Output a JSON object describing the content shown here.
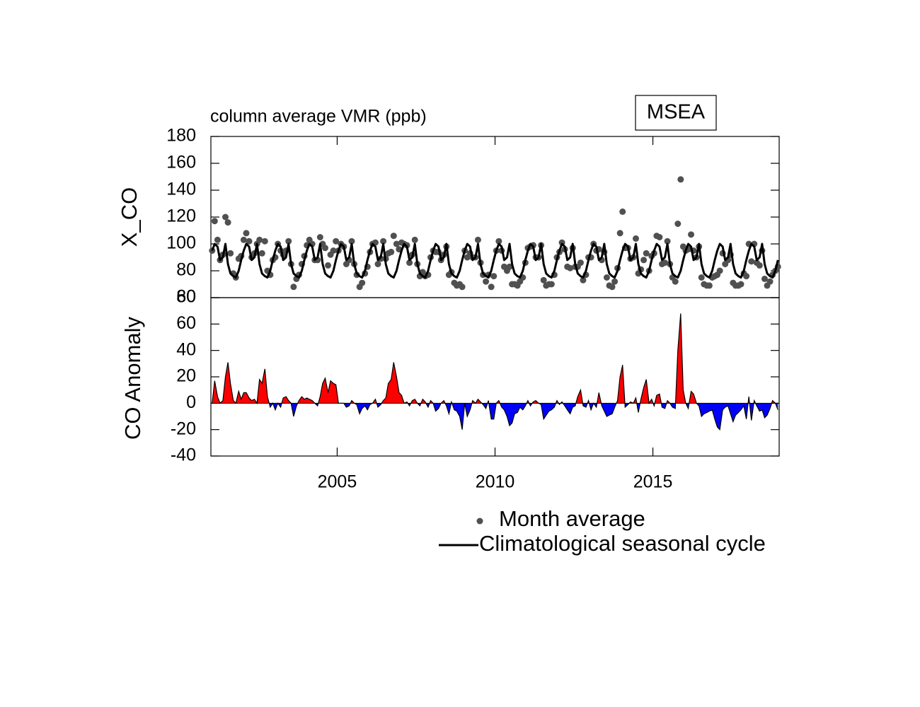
{
  "chart_data": [
    {
      "type": "scatter",
      "title": "column average VMR (ppb)",
      "annotation": "MSEA",
      "ylabel": "X_CO",
      "xlim": [
        2001,
        2019
      ],
      "ylim": [
        60,
        180
      ],
      "yticks": [
        60,
        80,
        100,
        120,
        140,
        160,
        180
      ],
      "x": [
        2001.04,
        2001.12,
        2001.21,
        2001.29,
        2001.38,
        2001.46,
        2001.54,
        2001.62,
        2001.71,
        2001.79,
        2001.88,
        2001.96,
        2002.04,
        2002.12,
        2002.21,
        2002.29,
        2002.38,
        2002.46,
        2002.54,
        2002.62,
        2002.71,
        2002.79,
        2002.88,
        2002.96,
        2003.04,
        2003.12,
        2003.21,
        2003.29,
        2003.38,
        2003.46,
        2003.54,
        2003.62,
        2003.71,
        2003.79,
        2003.88,
        2003.96,
        2004.04,
        2004.12,
        2004.21,
        2004.29,
        2004.38,
        2004.46,
        2004.54,
        2004.62,
        2004.71,
        2004.79,
        2004.88,
        2004.96,
        2005.04,
        2005.12,
        2005.21,
        2005.29,
        2005.38,
        2005.46,
        2005.54,
        2005.62,
        2005.71,
        2005.79,
        2005.88,
        2005.96,
        2006.04,
        2006.12,
        2006.21,
        2006.29,
        2006.38,
        2006.46,
        2006.54,
        2006.62,
        2006.71,
        2006.79,
        2006.88,
        2006.96,
        2007.04,
        2007.12,
        2007.21,
        2007.29,
        2007.38,
        2007.46,
        2007.54,
        2007.62,
        2007.71,
        2007.79,
        2007.88,
        2007.96,
        2008.04,
        2008.12,
        2008.21,
        2008.29,
        2008.38,
        2008.46,
        2008.54,
        2008.62,
        2008.71,
        2008.79,
        2008.88,
        2008.96,
        2009.04,
        2009.12,
        2009.21,
        2009.29,
        2009.38,
        2009.46,
        2009.54,
        2009.62,
        2009.71,
        2009.79,
        2009.88,
        2009.96,
        2010.04,
        2010.12,
        2010.21,
        2010.29,
        2010.38,
        2010.46,
        2010.54,
        2010.62,
        2010.71,
        2010.79,
        2010.88,
        2010.96,
        2011.04,
        2011.12,
        2011.21,
        2011.29,
        2011.38,
        2011.46,
        2011.54,
        2011.62,
        2011.71,
        2011.79,
        2011.88,
        2011.96,
        2012.04,
        2012.12,
        2012.21,
        2012.29,
        2012.38,
        2012.46,
        2012.54,
        2012.62,
        2012.71,
        2012.79,
        2012.88,
        2012.96,
        2013.04,
        2013.12,
        2013.21,
        2013.29,
        2013.38,
        2013.46,
        2013.54,
        2013.62,
        2013.71,
        2013.79,
        2013.88,
        2013.96,
        2014.04,
        2014.12,
        2014.21,
        2014.29,
        2014.38,
        2014.46,
        2014.54,
        2014.62,
        2014.71,
        2014.79,
        2014.88,
        2014.96,
        2015.04,
        2015.12,
        2015.21,
        2015.29,
        2015.38,
        2015.46,
        2015.54,
        2015.62,
        2015.71,
        2015.79,
        2015.88,
        2015.96,
        2016.04,
        2016.12,
        2016.21,
        2016.29,
        2016.38,
        2016.46,
        2016.54,
        2016.62,
        2016.71,
        2016.79,
        2016.88,
        2016.96,
        2017.04,
        2017.12,
        2017.21,
        2017.29,
        2017.38,
        2017.46,
        2017.54,
        2017.62,
        2017.71,
        2017.79,
        2017.88,
        2017.96,
        2018.04,
        2018.12,
        2018.21,
        2018.29,
        2018.38,
        2018.46,
        2018.54,
        2018.62,
        2018.71,
        2018.79,
        2018.88,
        2018.96
      ],
      "series": [
        {
          "name": "Month average",
          "type": "scatter",
          "color": "#505050",
          "values": [
            95,
            117,
            103,
            88,
            92,
            120,
            116,
            93,
            78,
            75,
            89,
            91,
            103,
            108,
            102,
            90,
            93,
            100,
            103,
            93,
            102,
            80,
            77,
            88,
            90,
            100,
            95,
            92,
            95,
            102,
            85,
            68,
            74,
            77,
            85,
            91,
            99,
            103,
            100,
            88,
            88,
            105,
            100,
            97,
            84,
            92,
            95,
            102,
            95,
            100,
            98,
            85,
            88,
            102,
            85,
            77,
            68,
            71,
            78,
            83,
            94,
            100,
            101,
            85,
            89,
            102,
            89,
            93,
            94,
            106,
            100,
            96,
            101,
            100,
            99,
            86,
            92,
            103,
            85,
            76,
            79,
            76,
            77,
            90,
            95,
            94,
            94,
            88,
            92,
            98,
            77,
            79,
            71,
            69,
            70,
            68,
            95,
            90,
            93,
            90,
            90,
            103,
            86,
            77,
            72,
            77,
            68,
            76,
            95,
            102,
            95,
            83,
            80,
            83,
            70,
            70,
            69,
            72,
            75,
            86,
            97,
            98,
            99,
            90,
            90,
            99,
            73,
            69,
            70,
            70,
            77,
            90,
            94,
            101,
            96,
            83,
            82,
            97,
            83,
            83,
            86,
            73,
            77,
            90,
            90,
            100,
            95,
            96,
            88,
            94,
            75,
            69,
            68,
            72,
            82,
            108,
            124,
            97,
            97,
            89,
            90,
            104,
            78,
            81,
            88,
            93,
            80,
            91,
            93,
            106,
            105,
            85,
            86,
            102,
            85,
            75,
            72,
            115,
            148,
            98,
            95,
            96,
            107,
            95,
            90,
            98,
            75,
            70,
            69,
            69,
            75,
            76,
            77,
            80,
            93,
            85,
            88,
            92,
            71,
            69,
            69,
            70,
            78,
            76,
            100,
            87,
            100,
            86,
            84,
            95,
            74,
            69,
            72,
            77,
            80,
            83
          ]
        },
        {
          "name": "Climatological seasonal cycle",
          "type": "line",
          "color": "#000000",
          "values": [
            95,
            100,
            98,
            88,
            90,
            100,
            85,
            78,
            76,
            75,
            80,
            88,
            95,
            100,
            98,
            88,
            90,
            100,
            85,
            78,
            76,
            75,
            80,
            88,
            95,
            100,
            98,
            88,
            90,
            100,
            85,
            78,
            76,
            75,
            80,
            88,
            95,
            100,
            98,
            88,
            90,
            100,
            85,
            78,
            76,
            75,
            80,
            88,
            95,
            100,
            98,
            88,
            90,
            100,
            85,
            78,
            76,
            75,
            80,
            88,
            95,
            100,
            98,
            88,
            90,
            100,
            85,
            78,
            76,
            75,
            80,
            88,
            95,
            100,
            98,
            88,
            90,
            100,
            85,
            78,
            76,
            75,
            80,
            88,
            95,
            100,
            98,
            88,
            90,
            100,
            85,
            78,
            76,
            75,
            80,
            88,
            95,
            100,
            98,
            88,
            90,
            100,
            85,
            78,
            76,
            75,
            80,
            88,
            95,
            100,
            98,
            88,
            90,
            100,
            85,
            78,
            76,
            75,
            80,
            88,
            95,
            100,
            98,
            88,
            90,
            100,
            85,
            78,
            76,
            75,
            80,
            88,
            95,
            100,
            98,
            88,
            90,
            100,
            85,
            78,
            76,
            75,
            80,
            88,
            95,
            100,
            98,
            88,
            90,
            100,
            85,
            78,
            76,
            75,
            80,
            88,
            95,
            100,
            98,
            88,
            90,
            100,
            85,
            78,
            76,
            75,
            80,
            88,
            95,
            100,
            98,
            88,
            90,
            100,
            85,
            78,
            76,
            75,
            80,
            88,
            95,
            100,
            98,
            88,
            90,
            100,
            85,
            78,
            76,
            75,
            80,
            88,
            95,
            100,
            98,
            88,
            90,
            100,
            85,
            78,
            76,
            75,
            80,
            88,
            95,
            100,
            98,
            88,
            90,
            100,
            85,
            78,
            76,
            75,
            80,
            88
          ]
        }
      ]
    },
    {
      "type": "area",
      "ylabel": "CO Anomaly",
      "xlim": [
        2001,
        2019
      ],
      "xticks": [
        2005,
        2010,
        2015
      ],
      "ylim": [
        -40,
        80
      ],
      "yticks": [
        -40,
        -20,
        0,
        20,
        40,
        60,
        80
      ],
      "positive_color": "#ff0000",
      "negative_color": "#0000ff",
      "color": "#000000",
      "x": [
        2001.04,
        2001.12,
        2001.21,
        2001.29,
        2001.38,
        2001.46,
        2001.54,
        2001.62,
        2001.71,
        2001.79,
        2001.88,
        2001.96,
        2002.04,
        2002.12,
        2002.21,
        2002.29,
        2002.38,
        2002.46,
        2002.54,
        2002.62,
        2002.71,
        2002.79,
        2002.88,
        2002.96,
        2003.04,
        2003.12,
        2003.21,
        2003.29,
        2003.38,
        2003.46,
        2003.54,
        2003.62,
        2003.71,
        2003.79,
        2003.88,
        2003.96,
        2004.04,
        2004.12,
        2004.21,
        2004.29,
        2004.38,
        2004.46,
        2004.54,
        2004.62,
        2004.71,
        2004.79,
        2004.88,
        2004.96,
        2005.04,
        2005.12,
        2005.21,
        2005.29,
        2005.38,
        2005.46,
        2005.54,
        2005.62,
        2005.71,
        2005.79,
        2005.88,
        2005.96,
        2006.04,
        2006.12,
        2006.21,
        2006.29,
        2006.38,
        2006.46,
        2006.54,
        2006.62,
        2006.71,
        2006.79,
        2006.88,
        2006.96,
        2007.04,
        2007.12,
        2007.21,
        2007.29,
        2007.38,
        2007.46,
        2007.54,
        2007.62,
        2007.71,
        2007.79,
        2007.88,
        2007.96,
        2008.04,
        2008.12,
        2008.21,
        2008.29,
        2008.38,
        2008.46,
        2008.54,
        2008.62,
        2008.71,
        2008.79,
        2008.88,
        2008.96,
        2009.04,
        2009.12,
        2009.21,
        2009.29,
        2009.38,
        2009.46,
        2009.54,
        2009.62,
        2009.71,
        2009.79,
        2009.88,
        2009.96,
        2010.04,
        2010.12,
        2010.21,
        2010.29,
        2010.38,
        2010.46,
        2010.54,
        2010.62,
        2010.71,
        2010.79,
        2010.88,
        2010.96,
        2011.04,
        2011.12,
        2011.21,
        2011.29,
        2011.38,
        2011.46,
        2011.54,
        2011.62,
        2011.71,
        2011.79,
        2011.88,
        2011.96,
        2012.04,
        2012.12,
        2012.21,
        2012.29,
        2012.38,
        2012.46,
        2012.54,
        2012.62,
        2012.71,
        2012.79,
        2012.88,
        2012.96,
        2013.04,
        2013.12,
        2013.21,
        2013.29,
        2013.38,
        2013.46,
        2013.54,
        2013.62,
        2013.71,
        2013.79,
        2013.88,
        2013.96,
        2014.04,
        2014.12,
        2014.21,
        2014.29,
        2014.38,
        2014.46,
        2014.54,
        2014.62,
        2014.71,
        2014.79,
        2014.88,
        2014.96,
        2015.04,
        2015.12,
        2015.21,
        2015.29,
        2015.38,
        2015.46,
        2015.54,
        2015.62,
        2015.71,
        2015.79,
        2015.88,
        2015.96,
        2016.04,
        2016.12,
        2016.21,
        2016.29,
        2016.38,
        2016.46,
        2016.54,
        2016.62,
        2016.71,
        2016.79,
        2016.88,
        2016.96,
        2017.04,
        2017.12,
        2017.21,
        2017.29,
        2017.38,
        2017.46,
        2017.54,
        2017.62,
        2017.71,
        2017.79,
        2017.88,
        2017.96,
        2018.04,
        2018.12,
        2018.21,
        2018.29,
        2018.38,
        2018.46,
        2018.54,
        2018.62,
        2018.71,
        2018.79,
        2018.88,
        2018.96
      ],
      "values": [
        0,
        17,
        5,
        0,
        2,
        20,
        31,
        15,
        2,
        0,
        9,
        3,
        8,
        8,
        4,
        2,
        3,
        0,
        18,
        15,
        26,
        5,
        -3,
        0,
        -5,
        0,
        -3,
        4,
        5,
        2,
        0,
        -10,
        -2,
        2,
        5,
        3,
        4,
        3,
        2,
        0,
        -2,
        5,
        15,
        19,
        8,
        17,
        15,
        14,
        0,
        0,
        0,
        -3,
        -2,
        2,
        0,
        -1,
        -8,
        -4,
        -2,
        -5,
        -1,
        0,
        3,
        -3,
        -1,
        2,
        4,
        15,
        18,
        31,
        20,
        8,
        6,
        0,
        1,
        -2,
        2,
        3,
        0,
        -2,
        3,
        1,
        -3,
        2,
        0,
        -6,
        -4,
        0,
        2,
        -2,
        -8,
        1,
        -5,
        -6,
        -10,
        -20,
        0,
        -10,
        -5,
        2,
        0,
        3,
        1,
        -1,
        -4,
        2,
        -12,
        -12,
        0,
        2,
        -3,
        -5,
        -10,
        -17,
        -15,
        -8,
        -7,
        -3,
        -5,
        -2,
        2,
        -2,
        1,
        2,
        0,
        -1,
        -12,
        -9,
        -6,
        -5,
        -3,
        2,
        -1,
        1,
        -2,
        -5,
        -8,
        -3,
        -2,
        5,
        10,
        -2,
        -3,
        2,
        -5,
        0,
        -3,
        8,
        -2,
        -6,
        -10,
        -9,
        -8,
        -3,
        2,
        20,
        29,
        -3,
        -1,
        1,
        0,
        4,
        -7,
        3,
        12,
        18,
        0,
        3,
        -2,
        6,
        7,
        -3,
        -4,
        2,
        0,
        -3,
        -4,
        40,
        68,
        10,
        0,
        -4,
        9,
        7,
        0,
        -2,
        -10,
        -8,
        -7,
        -6,
        -5,
        -12,
        -18,
        -20,
        -5,
        -3,
        -2,
        -8,
        -14,
        -9,
        -7,
        -5,
        -2,
        -12,
        5,
        -13,
        2,
        -2,
        -6,
        -5,
        -11,
        -9,
        -4,
        2,
        0,
        -5
      ]
    }
  ]
}
